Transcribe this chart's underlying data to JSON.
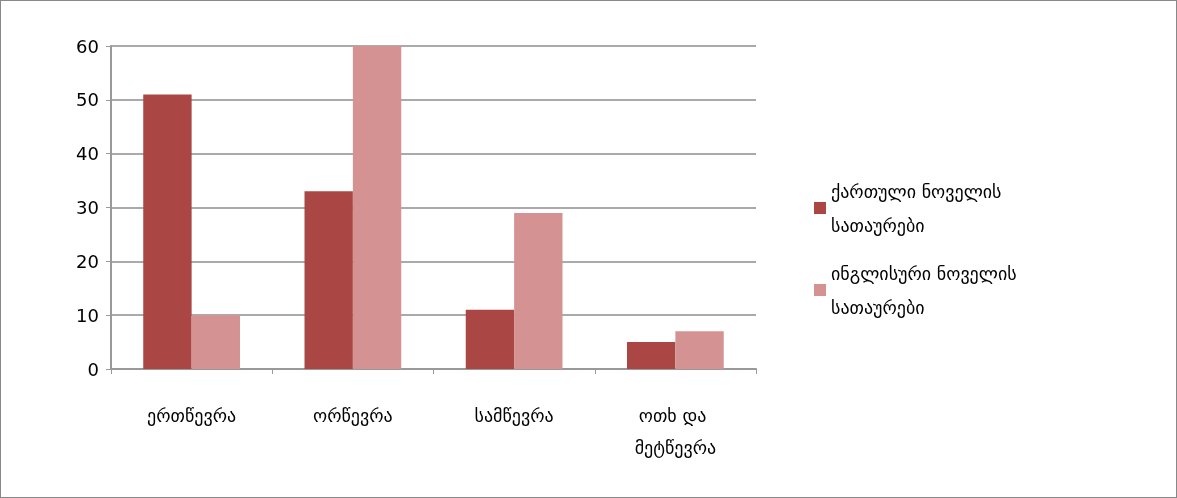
{
  "chart_data": {
    "type": "bar",
    "categories": [
      "ერთწევრა",
      "ორწევრა",
      "სამწევრა",
      "ოთხ და მეტწევრა"
    ],
    "series": [
      {
        "name": "ქართული ნოველის სათაურები",
        "color": "#aa4643",
        "values": [
          51,
          33,
          11,
          5
        ]
      },
      {
        "name": "ინგლისური ნოველის სათაურები",
        "color": "#d49392",
        "values": [
          10,
          60,
          29,
          7
        ]
      }
    ],
    "ylim": [
      0,
      60
    ],
    "yticks": [
      0,
      10,
      20,
      30,
      40,
      50,
      60
    ],
    "grid": "y",
    "legend": "right"
  }
}
